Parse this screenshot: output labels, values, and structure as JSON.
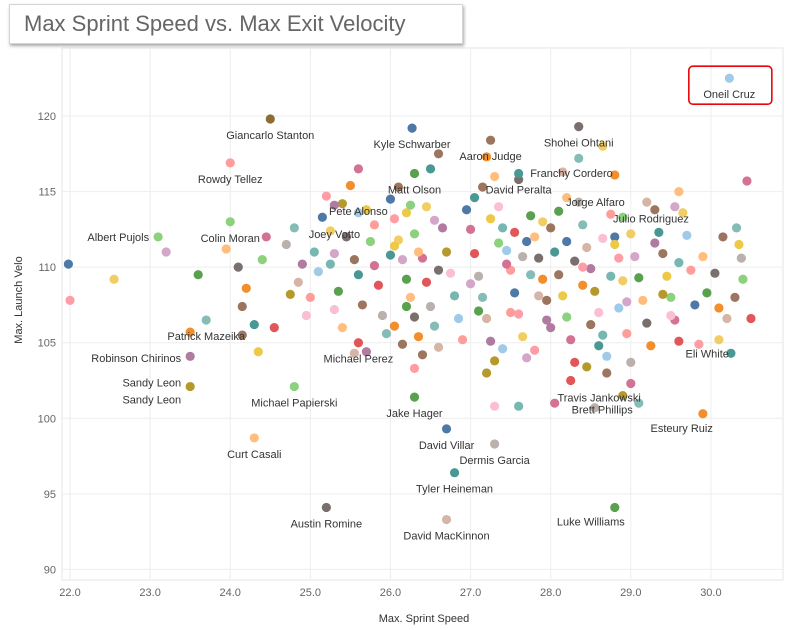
{
  "chart_data": {
    "type": "scatter",
    "title": "Max Sprint Speed vs. Max Exit Velocity",
    "xlabel": "Max. Sprint Speed",
    "ylabel": "Max. Launch Velo",
    "xlim": [
      21.9,
      30.9
    ],
    "ylim": [
      89.3,
      124.5
    ],
    "x_ticks": [
      "22.0",
      "23.0",
      "24.0",
      "25.0",
      "26.0",
      "27.0",
      "28.0",
      "29.0",
      "30.0"
    ],
    "y_ticks": [
      "90",
      "95",
      "100",
      "105",
      "110",
      "115",
      "120"
    ],
    "grid": true,
    "highlight": "Oneil Cruz",
    "labeled_points": [
      {
        "name": "Oneil Cruz",
        "x": 30.23,
        "y": 122.5,
        "color": "#a0cbe8"
      },
      {
        "name": "Giancarlo Stanton",
        "x": 24.5,
        "y": 119.8,
        "color": "#8c6d31"
      },
      {
        "name": "Kyle Schwarber",
        "x": 26.27,
        "y": 119.2,
        "color": "#4e79a7"
      },
      {
        "name": "Aaron Judge",
        "x": 27.25,
        "y": 118.4,
        "color": "#9c755f"
      },
      {
        "name": "Shohei Ohtani",
        "x": 28.35,
        "y": 119.3,
        "color": "#79706e"
      },
      {
        "name": "Matt Olson",
        "x": 26.3,
        "y": 116.2,
        "color": "#59a14f"
      },
      {
        "name": "Franchy Cordero",
        "x": 28.65,
        "y": 118.0,
        "color": "#f1ce63"
      },
      {
        "name": "Rowdy Tellez",
        "x": 24.0,
        "y": 116.9,
        "color": "#ff9d9a"
      },
      {
        "name": "Pete Alonso",
        "x": 25.6,
        "y": 116.5,
        "color": "#d37295"
      },
      {
        "name": "David Peralta",
        "x": 27.6,
        "y": 116.2,
        "color": "#499894"
      },
      {
        "name": "Jorge Alfaro",
        "x": 28.8,
        "y": 116.1,
        "color": "#f28e2b"
      },
      {
        "name": "Julio Rodriguez",
        "x": 29.6,
        "y": 115.0,
        "color": "#ffbe7d"
      },
      {
        "name": "Joey Votto",
        "x": 25.3,
        "y": 114.1,
        "color": "#b07aa1"
      },
      {
        "name": "Colin Moran",
        "x": 24.0,
        "y": 113.0,
        "color": "#8cd17d"
      },
      {
        "name": "Albert Pujols",
        "x": 23.1,
        "y": 112.0,
        "color": "#8cd17d"
      },
      {
        "name": "Patrick Mazeika",
        "x": 23.7,
        "y": 106.5,
        "color": "#86bcb6"
      },
      {
        "name": "Robinson Chirinos",
        "x": 23.5,
        "y": 105.7,
        "color": "#f28e2b"
      },
      {
        "name": "Michael Perez",
        "x": 25.6,
        "y": 105.0,
        "color": "#e15759"
      },
      {
        "name": "Eli White",
        "x": 30.1,
        "y": 105.2,
        "color": "#f1ce63"
      },
      {
        "name": "Sandy Leon",
        "x": 23.5,
        "y": 104.1,
        "color": "#b07aa1"
      },
      {
        "name": "Sandy Leon",
        "x": 23.5,
        "y": 102.1,
        "color": "#b6992d"
      },
      {
        "name": "Michael Papierski",
        "x": 24.8,
        "y": 102.1,
        "color": "#8cd17d"
      },
      {
        "name": "Travis Jankowski",
        "x": 29.0,
        "y": 102.3,
        "color": "#d37295"
      },
      {
        "name": "Jake Hager",
        "x": 26.3,
        "y": 101.4,
        "color": "#59a14f"
      },
      {
        "name": "David Villar",
        "x": 26.7,
        "y": 99.3,
        "color": "#4e79a7"
      },
      {
        "name": "Brett Phillips",
        "x": 28.9,
        "y": 101.5,
        "color": "#b6992d"
      },
      {
        "name": "Esteury Ruiz",
        "x": 29.9,
        "y": 100.3,
        "color": "#f28e2b"
      },
      {
        "name": "Curt Casali",
        "x": 24.3,
        "y": 98.7,
        "color": "#ffbe7d"
      },
      {
        "name": "Dermis Garcia",
        "x": 27.3,
        "y": 98.3,
        "color": "#bab0ac"
      },
      {
        "name": "Tyler Heineman",
        "x": 26.8,
        "y": 96.4,
        "color": "#499894"
      },
      {
        "name": "Austin Romine",
        "x": 25.2,
        "y": 94.1,
        "color": "#79706e"
      },
      {
        "name": "Luke Williams",
        "x": 28.8,
        "y": 94.1,
        "color": "#59a14f"
      },
      {
        "name": "David MacKinnon",
        "x": 26.7,
        "y": 93.3,
        "color": "#d7b5a6"
      }
    ],
    "points": [
      [
        21.98,
        110.2
      ],
      [
        22.0,
        107.8
      ],
      [
        22.55,
        109.2
      ],
      [
        23.2,
        111.0
      ],
      [
        23.6,
        109.5
      ],
      [
        23.95,
        111.2
      ],
      [
        24.1,
        110.0
      ],
      [
        24.2,
        108.6
      ],
      [
        24.15,
        107.4
      ],
      [
        24.3,
        106.2
      ],
      [
        24.15,
        105.5
      ],
      [
        24.35,
        104.4
      ],
      [
        24.4,
        110.5
      ],
      [
        24.45,
        112.0
      ],
      [
        24.55,
        106.0
      ],
      [
        24.7,
        111.5
      ],
      [
        24.8,
        112.6
      ],
      [
        24.85,
        109.0
      ],
      [
        24.9,
        110.2
      ],
      [
        24.75,
        108.2
      ],
      [
        24.95,
        106.8
      ],
      [
        25.05,
        111.0
      ],
      [
        25.1,
        109.7
      ],
      [
        25.0,
        108.0
      ],
      [
        25.15,
        113.3
      ],
      [
        25.2,
        114.7
      ],
      [
        25.25,
        112.4
      ],
      [
        25.3,
        110.9
      ],
      [
        25.35,
        108.4
      ],
      [
        25.4,
        106.0
      ],
      [
        25.45,
        112.0
      ],
      [
        25.5,
        115.4
      ],
      [
        25.55,
        110.5
      ],
      [
        25.6,
        109.5
      ],
      [
        25.65,
        107.5
      ],
      [
        25.7,
        113.8
      ],
      [
        25.75,
        111.7
      ],
      [
        25.8,
        110.1
      ],
      [
        25.85,
        108.8
      ],
      [
        25.9,
        106.8
      ],
      [
        25.95,
        105.6
      ],
      [
        25.55,
        104.3
      ],
      [
        25.7,
        104.4
      ],
      [
        25.4,
        114.2
      ],
      [
        25.3,
        107.2
      ],
      [
        25.25,
        110.2
      ],
      [
        25.6,
        113.6
      ],
      [
        25.8,
        112.8
      ],
      [
        26.0,
        114.5
      ],
      [
        26.05,
        113.2
      ],
      [
        26.1,
        111.8
      ],
      [
        26.15,
        110.5
      ],
      [
        26.2,
        109.2
      ],
      [
        26.25,
        108.0
      ],
      [
        26.3,
        106.7
      ],
      [
        26.35,
        105.4
      ],
      [
        26.4,
        104.2
      ],
      [
        26.0,
        110.8
      ],
      [
        26.1,
        115.3
      ],
      [
        26.2,
        113.6
      ],
      [
        26.3,
        112.2
      ],
      [
        26.4,
        110.6
      ],
      [
        26.45,
        109.0
      ],
      [
        26.5,
        107.4
      ],
      [
        26.55,
        106.1
      ],
      [
        26.6,
        104.7
      ],
      [
        26.65,
        112.6
      ],
      [
        26.7,
        111.0
      ],
      [
        26.75,
        109.6
      ],
      [
        26.8,
        108.1
      ],
      [
        26.85,
        106.6
      ],
      [
        26.9,
        105.2
      ],
      [
        26.95,
        113.8
      ],
      [
        26.3,
        103.3
      ],
      [
        26.45,
        114.0
      ],
      [
        26.55,
        113.1
      ],
      [
        26.2,
        107.4
      ],
      [
        26.35,
        111.0
      ],
      [
        26.6,
        109.8
      ],
      [
        26.05,
        106.1
      ],
      [
        26.15,
        104.9
      ],
      [
        26.5,
        116.5
      ],
      [
        26.6,
        117.5
      ],
      [
        26.05,
        111.4
      ],
      [
        26.25,
        114.1
      ],
      [
        27.0,
        112.5
      ],
      [
        27.05,
        110.9
      ],
      [
        27.1,
        109.4
      ],
      [
        27.15,
        108.0
      ],
      [
        27.2,
        106.6
      ],
      [
        27.25,
        105.1
      ],
      [
        27.3,
        103.8
      ],
      [
        27.35,
        114.0
      ],
      [
        27.4,
        112.6
      ],
      [
        27.45,
        111.1
      ],
      [
        27.5,
        109.8
      ],
      [
        27.55,
        108.3
      ],
      [
        27.6,
        106.9
      ],
      [
        27.65,
        105.4
      ],
      [
        27.7,
        104.0
      ],
      [
        27.75,
        113.4
      ],
      [
        27.8,
        112.0
      ],
      [
        27.85,
        110.6
      ],
      [
        27.9,
        109.2
      ],
      [
        27.95,
        107.8
      ],
      [
        27.05,
        114.6
      ],
      [
        27.15,
        115.3
      ],
      [
        27.25,
        113.2
      ],
      [
        27.35,
        111.6
      ],
      [
        27.45,
        110.2
      ],
      [
        27.55,
        112.3
      ],
      [
        27.65,
        110.7
      ],
      [
        27.75,
        109.5
      ],
      [
        27.85,
        108.1
      ],
      [
        27.95,
        106.5
      ],
      [
        27.2,
        103.0
      ],
      [
        27.3,
        100.8
      ],
      [
        27.6,
        100.8
      ],
      [
        27.4,
        104.6
      ],
      [
        27.5,
        107.0
      ],
      [
        27.7,
        111.7
      ],
      [
        27.8,
        104.5
      ],
      [
        27.9,
        113.0
      ],
      [
        27.0,
        108.9
      ],
      [
        27.1,
        107.1
      ],
      [
        27.3,
        116.0
      ],
      [
        27.6,
        115.8
      ],
      [
        27.2,
        117.3
      ],
      [
        28.0,
        112.6
      ],
      [
        28.05,
        111.0
      ],
      [
        28.1,
        109.5
      ],
      [
        28.15,
        108.1
      ],
      [
        28.2,
        106.7
      ],
      [
        28.25,
        105.2
      ],
      [
        28.3,
        103.7
      ],
      [
        28.35,
        114.3
      ],
      [
        28.4,
        112.8
      ],
      [
        28.45,
        111.3
      ],
      [
        28.5,
        109.9
      ],
      [
        28.55,
        108.4
      ],
      [
        28.6,
        107.0
      ],
      [
        28.65,
        105.5
      ],
      [
        28.7,
        104.1
      ],
      [
        28.75,
        113.5
      ],
      [
        28.8,
        112.0
      ],
      [
        28.85,
        110.6
      ],
      [
        28.9,
        109.1
      ],
      [
        28.95,
        107.7
      ],
      [
        28.1,
        113.7
      ],
      [
        28.2,
        114.6
      ],
      [
        28.3,
        110.4
      ],
      [
        28.4,
        108.8
      ],
      [
        28.5,
        106.2
      ],
      [
        28.6,
        104.8
      ],
      [
        28.7,
        103.0
      ],
      [
        28.8,
        111.5
      ],
      [
        28.9,
        113.3
      ],
      [
        28.05,
        101.0
      ],
      [
        28.25,
        102.5
      ],
      [
        28.55,
        100.7
      ],
      [
        28.35,
        117.2
      ],
      [
        28.15,
        116.3
      ],
      [
        28.0,
        106.0
      ],
      [
        28.45,
        103.4
      ],
      [
        28.65,
        111.9
      ],
      [
        28.75,
        109.4
      ],
      [
        28.85,
        107.3
      ],
      [
        28.95,
        105.6
      ],
      [
        28.2,
        111.7
      ],
      [
        28.4,
        110.0
      ],
      [
        29.0,
        112.2
      ],
      [
        29.05,
        110.7
      ],
      [
        29.1,
        109.3
      ],
      [
        29.15,
        107.8
      ],
      [
        29.2,
        106.3
      ],
      [
        29.25,
        104.8
      ],
      [
        29.3,
        113.8
      ],
      [
        29.35,
        112.3
      ],
      [
        29.4,
        110.9
      ],
      [
        29.45,
        109.4
      ],
      [
        29.5,
        108.0
      ],
      [
        29.55,
        106.5
      ],
      [
        29.6,
        105.1
      ],
      [
        29.0,
        103.7
      ],
      [
        29.1,
        101.0
      ],
      [
        29.2,
        114.3
      ],
      [
        29.3,
        111.6
      ],
      [
        29.4,
        108.2
      ],
      [
        29.5,
        106.8
      ],
      [
        29.6,
        110.3
      ],
      [
        29.7,
        112.1
      ],
      [
        29.75,
        109.8
      ],
      [
        29.8,
        107.5
      ],
      [
        29.85,
        104.9
      ],
      [
        29.65,
        113.6
      ],
      [
        29.55,
        114.0
      ],
      [
        29.95,
        108.3
      ],
      [
        29.9,
        110.7
      ],
      [
        30.05,
        109.6
      ],
      [
        30.1,
        107.3
      ],
      [
        30.15,
        112.0
      ],
      [
        30.25,
        104.3
      ],
      [
        30.3,
        108.0
      ],
      [
        30.35,
        111.5
      ],
      [
        30.4,
        109.2
      ],
      [
        30.45,
        115.7
      ],
      [
        30.5,
        106.6
      ],
      [
        30.38,
        110.6
      ],
      [
        30.32,
        112.6
      ],
      [
        30.2,
        106.6
      ]
    ]
  },
  "palette": [
    "#4e79a7",
    "#f28e2b",
    "#e15759",
    "#76b7b2",
    "#59a14f",
    "#edc948",
    "#b07aa1",
    "#ff9da7",
    "#9c755f",
    "#bab0ac",
    "#a0cbe8",
    "#ffbe7d",
    "#8cd17d",
    "#b6992d",
    "#f1ce63",
    "#499894",
    "#86bcb6",
    "#ff9d9a",
    "#79706e",
    "#d37295",
    "#fabfd2",
    "#d4a6c8",
    "#9d7660",
    "#d7b5a6"
  ],
  "highlight_color": "#e8060a"
}
